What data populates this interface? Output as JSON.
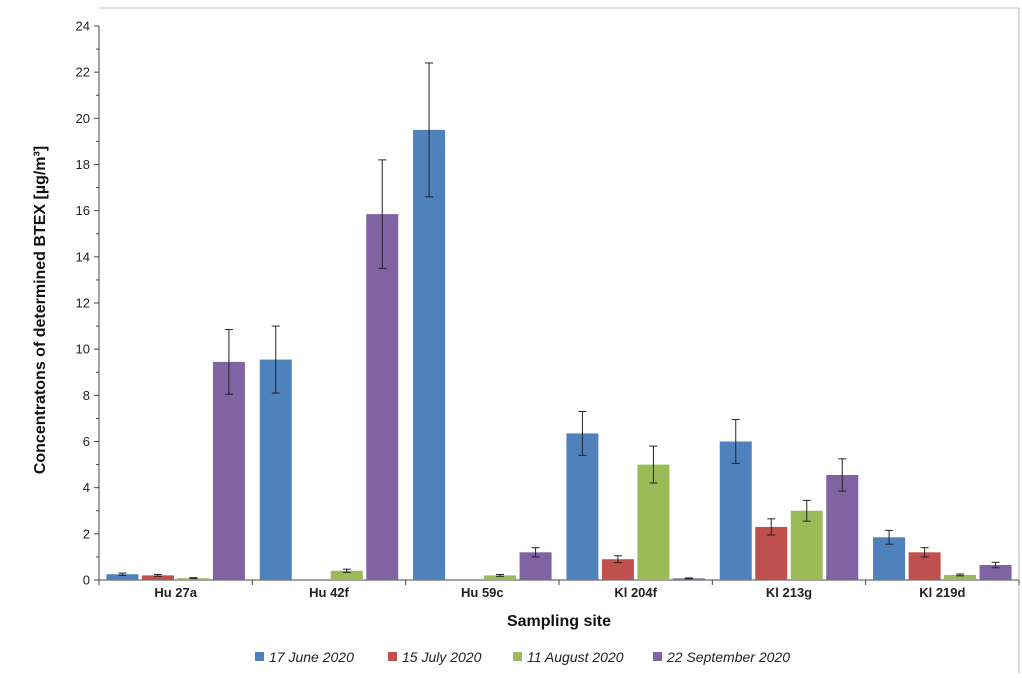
{
  "chart_data": {
    "type": "bar",
    "xlabel": "Sampling site",
    "ylabel": "Concentratons of  determined BTEX [µg/m³]",
    "ylim": [
      0,
      24
    ],
    "yticks": [
      0,
      2,
      4,
      6,
      8,
      10,
      12,
      14,
      16,
      18,
      20,
      22,
      24
    ],
    "categories": [
      "Hu 27a",
      "Hu 42f",
      "Hu 59c",
      "Kl 204f",
      "Kl 213g",
      "Kl 219d"
    ],
    "series": [
      {
        "name": "17 June 2020",
        "color": "#4f81bd",
        "values": [
          0.25,
          9.55,
          19.5,
          6.35,
          6.0,
          1.85
        ],
        "errors": [
          0.05,
          1.45,
          2.9,
          0.95,
          0.95,
          0.3
        ]
      },
      {
        "name": "15 July 2020",
        "color": "#c0504d",
        "values": [
          0.2,
          null,
          null,
          0.9,
          2.3,
          1.2
        ],
        "errors": [
          0.04,
          null,
          null,
          0.15,
          0.35,
          0.2
        ]
      },
      {
        "name": "11 August 2020",
        "color": "#9bbb59",
        "values": [
          0.08,
          0.4,
          0.2,
          5.0,
          3.0,
          0.22
        ],
        "errors": [
          0.02,
          0.07,
          0.04,
          0.8,
          0.45,
          0.04
        ]
      },
      {
        "name": "22 September 2020",
        "color": "#8064a2",
        "values": [
          9.45,
          15.85,
          1.2,
          0.07,
          4.55,
          0.65
        ],
        "errors": [
          1.4,
          2.35,
          0.2,
          0.02,
          0.7,
          0.12
        ]
      }
    ],
    "legend_position": "bottom",
    "grid": false
  }
}
